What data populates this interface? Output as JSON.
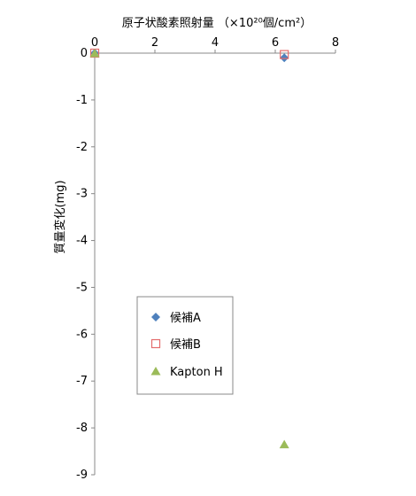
{
  "chart_data": {
    "type": "scatter",
    "xlabel": "原子状酸素照射量 （×10²⁰個/cm²）",
    "ylabel": "質量変化(mg)",
    "xlim": [
      0,
      8
    ],
    "ylim": [
      -9,
      0
    ],
    "x_ticks": [
      "0",
      "2",
      "4",
      "6",
      "8"
    ],
    "y_ticks": [
      "0",
      "-1",
      "-2",
      "-3",
      "-4",
      "-5",
      "-6",
      "-7",
      "-8",
      "-9"
    ],
    "x_axis_position": "top",
    "grid": false,
    "legend_position": "center-left",
    "series": [
      {
        "name": "候補A",
        "marker": "diamond",
        "color": "#4F81BD",
        "points": [
          {
            "x": 0,
            "y": 0
          },
          {
            "x": 6.3,
            "y": -0.1
          }
        ]
      },
      {
        "name": "候補B",
        "marker": "square-open",
        "color": "#E46C6C",
        "points": [
          {
            "x": 0,
            "y": 0
          },
          {
            "x": 6.3,
            "y": -0.03
          }
        ]
      },
      {
        "name": "Kapton H",
        "marker": "triangle",
        "color": "#9BBB59",
        "points": [
          {
            "x": 0,
            "y": 0
          },
          {
            "x": 6.3,
            "y": -8.35
          }
        ]
      }
    ]
  }
}
